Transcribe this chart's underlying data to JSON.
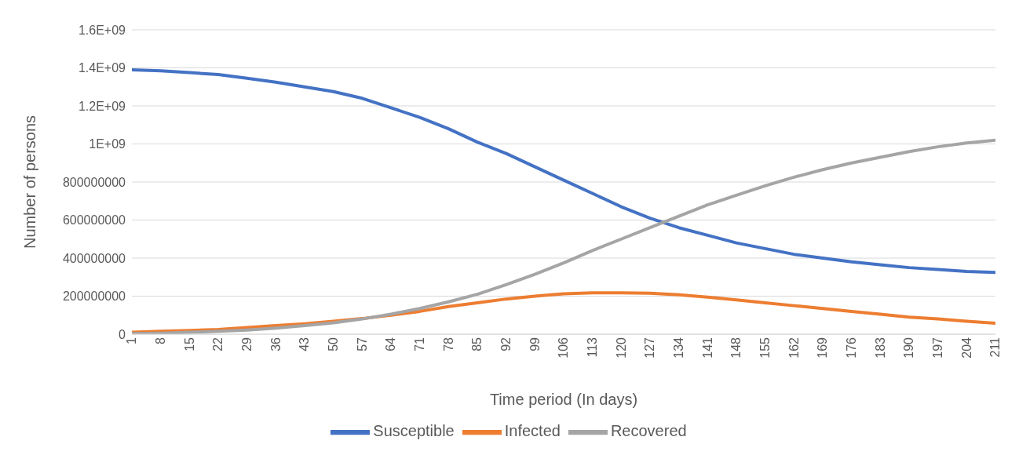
{
  "chart_data": {
    "type": "line",
    "xlabel": "Time period (In days)",
    "ylabel": "Number of persons",
    "x": [
      1,
      8,
      15,
      22,
      29,
      36,
      43,
      50,
      57,
      64,
      71,
      78,
      85,
      92,
      99,
      106,
      113,
      120,
      127,
      134,
      141,
      148,
      155,
      162,
      169,
      176,
      183,
      190,
      197,
      204,
      211
    ],
    "series": [
      {
        "name": "Susceptible",
        "color": "#4472c4",
        "values": [
          1390000000,
          1385000000,
          1375000000,
          1365000000,
          1345000000,
          1325000000,
          1300000000,
          1275000000,
          1240000000,
          1190000000,
          1140000000,
          1080000000,
          1010000000,
          950000000,
          880000000,
          810000000,
          740000000,
          670000000,
          610000000,
          560000000,
          520000000,
          480000000,
          450000000,
          420000000,
          400000000,
          380000000,
          365000000,
          350000000,
          340000000,
          330000000,
          325000000
        ]
      },
      {
        "name": "Infected",
        "color": "#ed7d31",
        "values": [
          10000000,
          15000000,
          20000000,
          25000000,
          35000000,
          45000000,
          55000000,
          68000000,
          82000000,
          100000000,
          120000000,
          145000000,
          165000000,
          185000000,
          200000000,
          212000000,
          218000000,
          218000000,
          215000000,
          207000000,
          195000000,
          180000000,
          165000000,
          150000000,
          135000000,
          120000000,
          105000000,
          90000000,
          80000000,
          68000000,
          58000000
        ]
      },
      {
        "name": "Recovered",
        "color": "#a5a5a5",
        "values": [
          3000000,
          5000000,
          10000000,
          15000000,
          22000000,
          32000000,
          45000000,
          60000000,
          80000000,
          105000000,
          135000000,
          170000000,
          210000000,
          260000000,
          315000000,
          375000000,
          440000000,
          500000000,
          560000000,
          620000000,
          680000000,
          730000000,
          780000000,
          825000000,
          865000000,
          900000000,
          930000000,
          960000000,
          985000000,
          1005000000,
          1020000000
        ]
      }
    ],
    "xlim": [
      1,
      211
    ],
    "xticks": [
      1,
      8,
      15,
      22,
      29,
      36,
      43,
      50,
      57,
      64,
      71,
      78,
      85,
      92,
      99,
      106,
      113,
      120,
      127,
      134,
      141,
      148,
      155,
      162,
      169,
      176,
      183,
      190,
      197,
      204,
      211
    ],
    "ylim": [
      0,
      1600000000
    ],
    "yticks": [
      0,
      200000000,
      400000000,
      600000000,
      800000000,
      {
        "value": 1000000000,
        "label": "1E+09"
      },
      {
        "value": 1200000000,
        "label": "1.2E+09"
      },
      {
        "value": 1400000000,
        "label": "1.4E+09"
      },
      {
        "value": 1600000000,
        "label": "1.6E+09"
      }
    ],
    "grid": "y",
    "legend": "bottom",
    "marker": "none",
    "line_style": "solid"
  }
}
